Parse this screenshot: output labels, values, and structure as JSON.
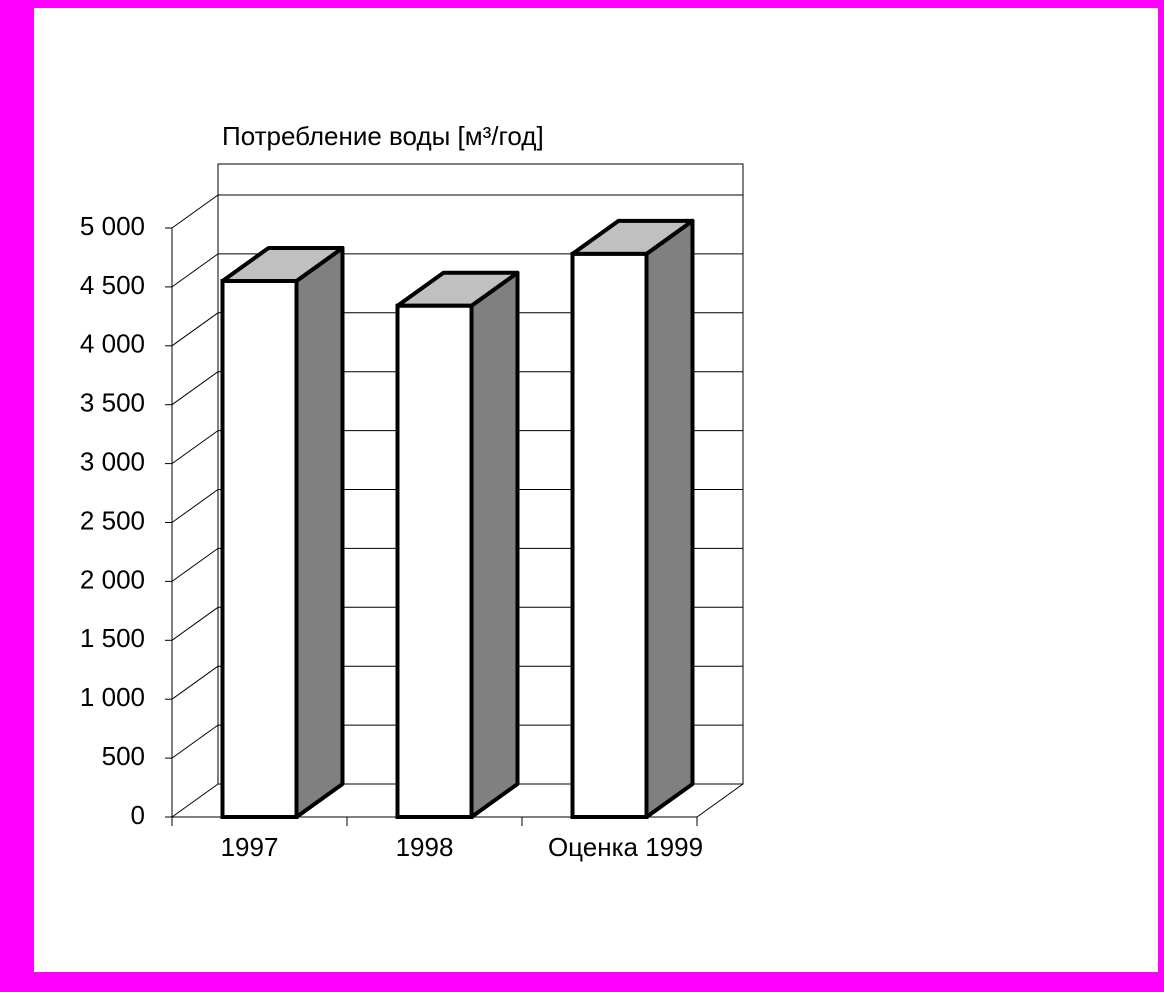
{
  "chart_data": {
    "type": "bar3d",
    "title": "Потребление воды [м³/год]",
    "categories": [
      "1997",
      "1998",
      "Оценка 1999"
    ],
    "values": [
      4550,
      4340,
      4780
    ],
    "ylim": [
      0,
      5000
    ],
    "yticks": [
      0,
      500,
      {
        "value": 1000,
        "label": "1 000"
      },
      {
        "value": 1500,
        "label": "1 500"
      },
      {
        "value": 2000,
        "label": "2 000"
      },
      {
        "value": 2500,
        "label": "2 500"
      },
      {
        "value": 3000,
        "label": "3 000"
      },
      {
        "value": 3500,
        "label": "3 500"
      },
      {
        "value": 4000,
        "label": "4 000"
      },
      {
        "value": 4500,
        "label": "4 500"
      },
      {
        "value": 5000,
        "label": "5 000"
      }
    ],
    "grid": true,
    "front_color": "#ffffff",
    "top_color": "#c0c0c0",
    "side_color": "#808080"
  }
}
